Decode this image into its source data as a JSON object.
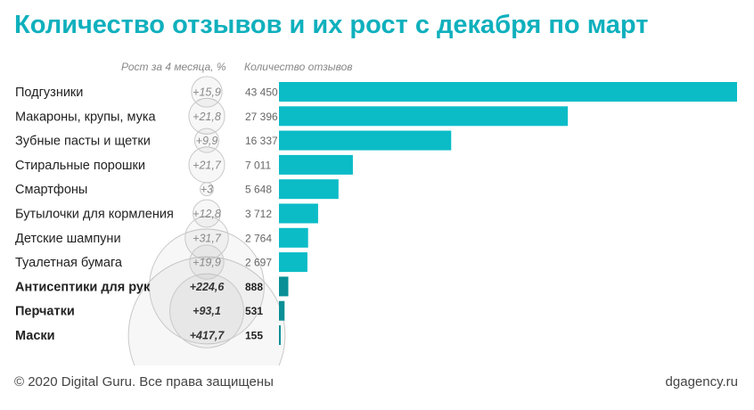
{
  "chart_data": {
    "type": "bar",
    "title": "Количество отзывов и их рост с декабря по март",
    "growth_header": "Рост за 4 месяца, %",
    "count_header": "Количество отзывов",
    "categories": [
      "Подгузники",
      "Макароны, крупы, мука",
      "Зубные пасты и щетки",
      "Стиральные порошки",
      "Смартфоны",
      "Бутылочки для кормления",
      "Детские шампуни",
      "Туалетная бумага",
      "Антисептики для рук",
      "Перчатки",
      "Маски"
    ],
    "growth_labels": [
      "+15,9",
      "+21,8",
      "+9,9",
      "+21,7",
      "+3",
      "+12,8",
      "+31,7",
      "+19,9",
      "+224,6",
      "+93,1",
      "+417,7"
    ],
    "growth_values": [
      15.9,
      21.8,
      9.9,
      21.7,
      3,
      12.8,
      31.7,
      19.9,
      224.6,
      93.1,
      417.7
    ],
    "value_labels": [
      "43 450",
      "27 396",
      "16 337",
      "7 011",
      "5 648",
      "3 712",
      "2 764",
      "2 697",
      "888",
      "531",
      "155"
    ],
    "values": [
      43450,
      27396,
      16337,
      7011,
      5648,
      3712,
      2764,
      2697,
      888,
      531,
      155
    ],
    "highlighted": [
      false,
      false,
      false,
      false,
      false,
      false,
      false,
      false,
      true,
      true,
      true
    ],
    "colors": {
      "bar": "#0bbcc7",
      "bar_highlight": "#0a8f96",
      "circle_stroke": "#c9c9c9",
      "circle_fill": "#000000"
    }
  },
  "footer": {
    "copyright": "© 2020 Digital Guru. Все права защищены",
    "site": "dgagency.ru"
  }
}
